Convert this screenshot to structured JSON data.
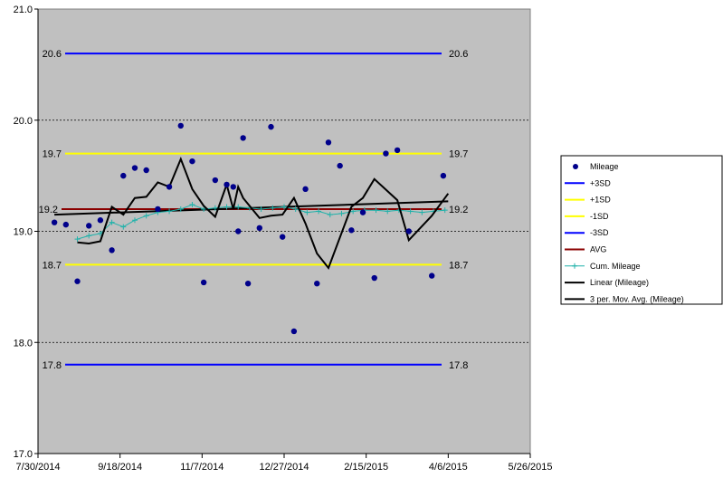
{
  "chart_data": {
    "type": "scatter",
    "title": "",
    "xlabel": "",
    "ylabel": "",
    "background_color": "#c0c0c0",
    "grid": true,
    "legend_position": "right",
    "xlim": [
      "2014-07-30",
      "2015-05-26"
    ],
    "ylim": [
      17.0,
      21.0
    ],
    "x_ticks": [
      "7/30/2014",
      "9/18/2014",
      "11/7/2014",
      "12/27/2014",
      "2/15/2015",
      "4/6/2015",
      "5/26/2015"
    ],
    "y_ticks": [
      "17.0",
      "18.0",
      "19.0",
      "20.0",
      "21.0"
    ],
    "reference_lines": [
      {
        "name": "+3SD",
        "value": 20.6,
        "label": "20.6",
        "color": "#0000ff"
      },
      {
        "name": "+1SD",
        "value": 19.7,
        "label": "19.7",
        "color": "#ffff00"
      },
      {
        "name": "-1SD",
        "value": 18.7,
        "label": "18.7",
        "color": "#ffff00"
      },
      {
        "name": "-3SD",
        "value": 17.8,
        "label": "17.8",
        "color": "#0000ff"
      },
      {
        "name": "AVG",
        "value": 19.2,
        "label": "19.2",
        "color": "#8b0000"
      }
    ],
    "mileage": {
      "name": "Mileage",
      "color": "#00008b",
      "x": [
        "2014-08-09",
        "2014-08-16",
        "2014-08-23",
        "2014-08-30",
        "2014-09-06",
        "2014-09-13",
        "2014-09-20",
        "2014-09-27",
        "2014-10-04",
        "2014-10-11",
        "2014-10-18",
        "2014-10-25",
        "2014-11-01",
        "2014-11-08",
        "2014-11-15",
        "2014-11-22",
        "2014-11-26",
        "2014-11-29",
        "2014-12-02",
        "2014-12-05",
        "2014-12-12",
        "2014-12-19",
        "2014-12-26",
        "2015-01-02",
        "2015-01-09",
        "2015-01-16",
        "2015-01-23",
        "2015-01-30",
        "2015-02-06",
        "2015-02-13",
        "2015-02-20",
        "2015-02-27",
        "2015-03-06",
        "2015-03-13",
        "2015-03-27",
        "2015-04-03"
      ],
      "y": [
        19.08,
        19.06,
        18.55,
        19.05,
        19.1,
        18.83,
        19.5,
        19.57,
        19.55,
        19.2,
        19.4,
        19.95,
        19.63,
        18.54,
        19.46,
        19.42,
        19.4,
        19.0,
        19.84,
        18.53,
        19.03,
        19.94,
        18.95,
        18.1,
        19.38,
        18.53,
        19.8,
        19.59,
        19.01,
        19.17,
        18.58,
        19.7,
        19.73,
        19.0,
        18.6,
        19.5
      ]
    },
    "cum_mileage": {
      "name": "Cum. Mileage",
      "color": "#20b2aa",
      "x": [
        "2014-08-23",
        "2014-08-30",
        "2014-09-06",
        "2014-09-13",
        "2014-09-20",
        "2014-09-27",
        "2014-10-04",
        "2014-10-11",
        "2014-10-18",
        "2014-10-25",
        "2014-11-01",
        "2014-11-08",
        "2014-11-15",
        "2014-11-22",
        "2014-11-29",
        "2014-12-06",
        "2014-12-13",
        "2014-12-20",
        "2014-12-27",
        "2015-01-03",
        "2015-01-10",
        "2015-01-17",
        "2015-01-24",
        "2015-01-31",
        "2015-02-07",
        "2015-02-14",
        "2015-02-21",
        "2015-02-28",
        "2015-03-07",
        "2015-03-14",
        "2015-03-21",
        "2015-03-28",
        "2015-04-04"
      ],
      "y": [
        18.93,
        18.96,
        18.98,
        19.08,
        19.04,
        19.1,
        19.14,
        19.17,
        19.18,
        19.2,
        19.24,
        19.2,
        19.21,
        19.22,
        19.22,
        19.21,
        19.2,
        19.21,
        19.22,
        19.2,
        19.17,
        19.18,
        19.15,
        19.16,
        19.18,
        19.19,
        19.19,
        19.18,
        19.19,
        19.18,
        19.17,
        19.18,
        19.19
      ]
    },
    "linear_trend": {
      "name": "Linear (Mileage)",
      "color": "#000000",
      "x": [
        "2014-08-09",
        "2015-04-06"
      ],
      "y": [
        19.15,
        19.27
      ]
    },
    "moving_average": {
      "name": "3 per. Mov. Avg. (Mileage)",
      "color": "#000000",
      "x": [
        "2014-08-23",
        "2014-08-30",
        "2014-09-06",
        "2014-09-13",
        "2014-09-20",
        "2014-09-27",
        "2014-10-04",
        "2014-10-11",
        "2014-10-18",
        "2014-10-25",
        "2014-11-01",
        "2014-11-08",
        "2014-11-15",
        "2014-11-22",
        "2014-11-26",
        "2014-11-29",
        "2014-12-02",
        "2014-12-12",
        "2014-12-19",
        "2014-12-26",
        "2015-01-02",
        "2015-01-09",
        "2015-01-16",
        "2015-01-23",
        "2015-02-06",
        "2015-02-13",
        "2015-02-20",
        "2015-03-06",
        "2015-03-13",
        "2015-03-27",
        "2015-04-06"
      ],
      "y": [
        18.9,
        18.89,
        18.91,
        19.22,
        19.15,
        19.3,
        19.31,
        19.44,
        19.4,
        19.65,
        19.38,
        19.23,
        19.13,
        19.42,
        19.2,
        19.4,
        19.3,
        19.12,
        19.14,
        19.15,
        19.3,
        19.07,
        18.8,
        18.67,
        19.22,
        19.3,
        19.47,
        19.28,
        18.92,
        19.14,
        19.34
      ]
    },
    "legend": [
      {
        "label": "Mileage",
        "kind": "marker",
        "color": "#00008b"
      },
      {
        "label": "+3SD",
        "kind": "line",
        "color": "#0000ff"
      },
      {
        "label": "+1SD",
        "kind": "line",
        "color": "#ffff00"
      },
      {
        "label": "-1SD",
        "kind": "line",
        "color": "#ffff00"
      },
      {
        "label": "-3SD",
        "kind": "line",
        "color": "#0000ff"
      },
      {
        "label": "AVG",
        "kind": "line",
        "color": "#8b0000"
      },
      {
        "label": "Cum. Mileage",
        "kind": "cross-line",
        "color": "#20b2aa"
      },
      {
        "label": "Linear (Mileage)",
        "kind": "line",
        "color": "#000000"
      },
      {
        "label": "3 per. Mov. Avg. (Mileage)",
        "kind": "line",
        "color": "#000000"
      }
    ]
  }
}
